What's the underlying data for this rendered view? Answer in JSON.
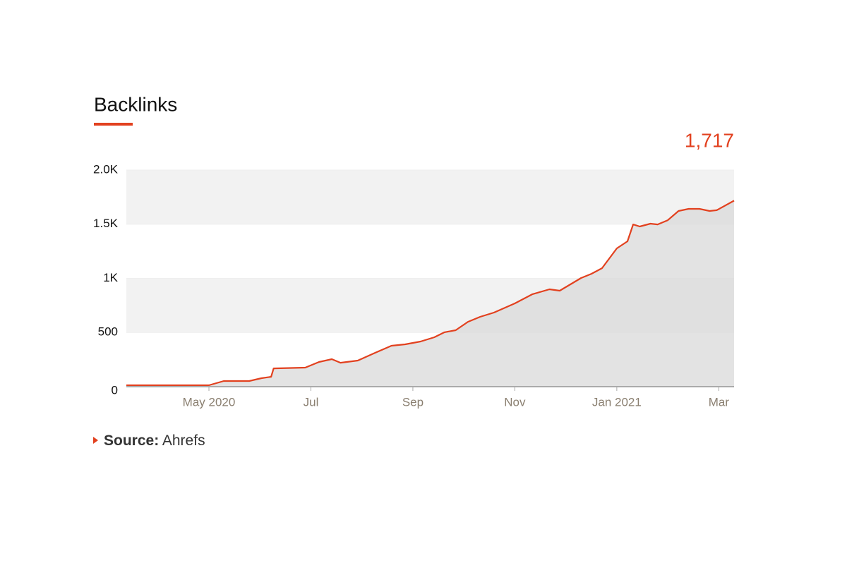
{
  "chart_data": {
    "type": "area",
    "title": "Backlinks",
    "annotation": "1,717",
    "source_label": "Source:",
    "source": "Ahrefs",
    "color": "#e2411f",
    "fill": "#d9d9d9",
    "grid": true,
    "x": [
      3.38,
      5,
      5.29,
      5.79,
      6.03,
      6.22,
      6.27,
      6.89,
      7.16,
      7.41,
      7.58,
      7.92,
      8.26,
      8.58,
      8.85,
      9.15,
      9.42,
      9.62,
      9.84,
      10.08,
      10.32,
      10.59,
      11.0,
      11.34,
      11.68,
      11.88,
      12.3,
      12.5,
      12.71,
      13.0,
      13.21,
      13.32,
      13.45,
      13.66,
      13.8,
      14.0,
      14.21,
      14.41,
      14.62,
      14.82,
      14.96,
      15.3
    ],
    "values": [
      13,
      13,
      52,
      52,
      78,
      91,
      169,
      176,
      228,
      254,
      221,
      241,
      313,
      378,
      391,
      417,
      456,
      502,
      521,
      599,
      645,
      684,
      769,
      853,
      899,
      886,
      1003,
      1042,
      1094,
      1277,
      1342,
      1498,
      1479,
      1505,
      1498,
      1537,
      1622,
      1642,
      1642,
      1622,
      1629,
      1717
    ],
    "xlim": [
      3.38,
      15.3
    ],
    "xticks": [
      {
        "value": 5,
        "label": "May 2020"
      },
      {
        "value": 7,
        "label": "Jul"
      },
      {
        "value": 9,
        "label": "Sep"
      },
      {
        "value": 11,
        "label": "Nov"
      },
      {
        "value": 13,
        "label": "Jan 2021"
      },
      {
        "value": 15,
        "label": "Mar"
      }
    ],
    "ylim": [
      0,
      2000
    ],
    "yticks": [
      0,
      500,
      {
        "value": 1000,
        "label": "1K"
      },
      {
        "value": 1500,
        "label": "1.5K"
      },
      {
        "value": 2000,
        "label": "2.0K"
      }
    ]
  }
}
